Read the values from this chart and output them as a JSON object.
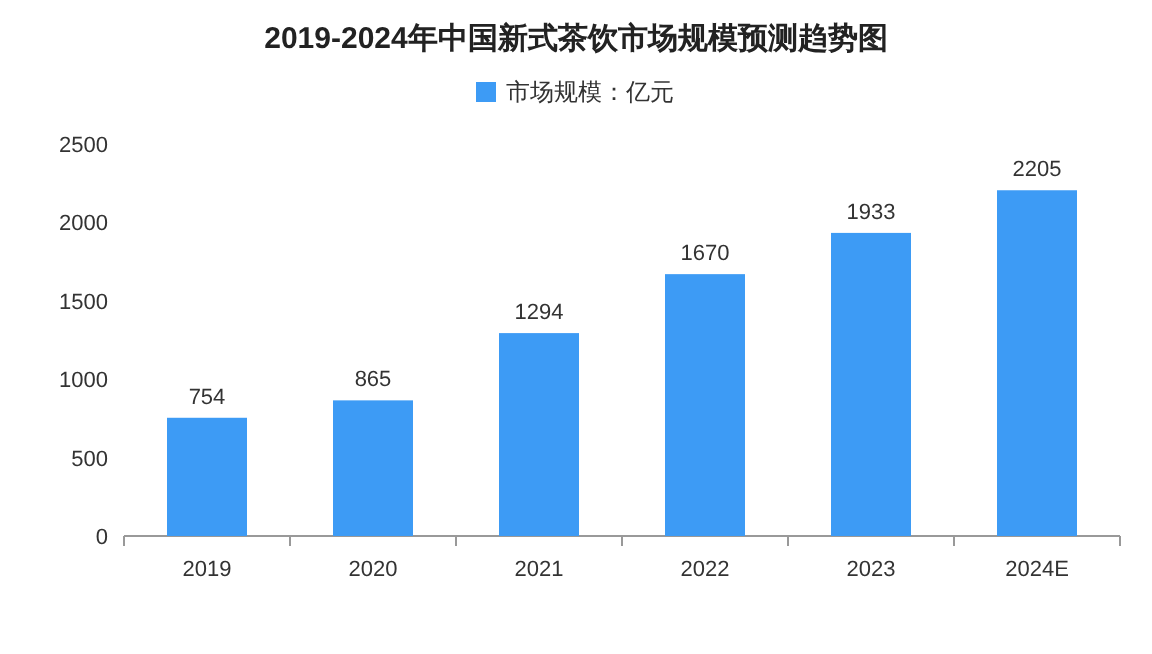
{
  "chart_data": {
    "type": "bar",
    "title": "2019-2024年中国新式茶饮市场规模预测趋势图",
    "categories": [
      "2019",
      "2020",
      "2021",
      "2022",
      "2023",
      "2024E"
    ],
    "series": [
      {
        "name": "市场规模：亿元",
        "color": "#3d9bf5",
        "values": [
          754,
          865,
          1294,
          1670,
          1933,
          2205
        ]
      }
    ],
    "ylim": [
      0,
      2500
    ],
    "yticks": [
      0,
      500,
      1000,
      1500,
      2000,
      2500
    ],
    "data_labels": true,
    "legend": "top"
  }
}
